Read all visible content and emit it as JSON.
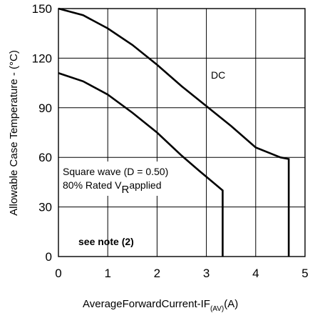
{
  "chart_data": {
    "type": "line",
    "xlabel": {
      "main": "AverageForwardCurrent-I",
      "main_tail": "F",
      "sub": "(AV)",
      "unit": "(A)"
    },
    "ylabel": "Allowable Case Temperature - (°C)",
    "xlim": [
      0,
      5
    ],
    "ylim": [
      0,
      150
    ],
    "x_ticks": [
      0,
      1,
      2,
      3,
      4,
      5
    ],
    "y_ticks": [
      0,
      30,
      60,
      90,
      120,
      150
    ],
    "grid": true,
    "series": [
      {
        "name": "DC",
        "x": [
          0,
          0.5,
          1.0,
          1.5,
          2.0,
          2.5,
          3.0,
          3.5,
          4.0,
          4.5,
          4.67,
          4.67
        ],
        "y": [
          150,
          146,
          138,
          128,
          116,
          103,
          91,
          79,
          66,
          60,
          59,
          0
        ]
      },
      {
        "name": "Square wave (D = 0.50)",
        "x": [
          0,
          0.5,
          1.0,
          1.5,
          2.0,
          2.5,
          2.85,
          3.33,
          3.33
        ],
        "y": [
          111,
          106,
          98,
          87,
          75,
          61,
          52,
          40,
          0
        ]
      }
    ],
    "annotations": {
      "dc": "DC",
      "square_line1": "Square wave (D = 0.50)",
      "square_line2_pre": "80% Rated V",
      "square_line2_sub": "R",
      "square_line2_post": "applied",
      "note": "see note (2)"
    }
  }
}
